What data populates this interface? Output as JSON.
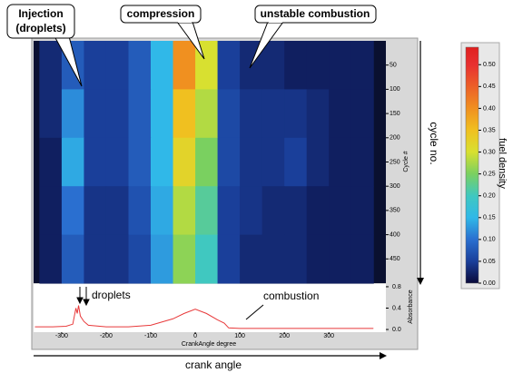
{
  "chart_data": [
    {
      "type": "heatmap",
      "x": [
        -325,
        -275,
        -225,
        -175,
        -125,
        -75,
        -25,
        25,
        75,
        125,
        175,
        225,
        275,
        325,
        375
      ],
      "y": [
        50,
        150,
        250,
        350,
        450
      ],
      "values": [
        [
          0.03,
          0.08,
          0.05,
          0.05,
          0.08,
          0.15,
          0.4,
          0.3,
          0.05,
          0.03,
          0.03,
          0.02,
          0.02,
          0.02,
          0.02
        ],
        [
          0.03,
          0.12,
          0.05,
          0.05,
          0.08,
          0.15,
          0.35,
          0.28,
          0.06,
          0.04,
          0.04,
          0.04,
          0.03,
          0.02,
          0.02
        ],
        [
          0.02,
          0.14,
          0.05,
          0.05,
          0.08,
          0.15,
          0.32,
          0.25,
          0.06,
          0.04,
          0.04,
          0.05,
          0.03,
          0.02,
          0.02
        ],
        [
          0.02,
          0.1,
          0.04,
          0.04,
          0.07,
          0.14,
          0.28,
          0.22,
          0.05,
          0.04,
          0.03,
          0.03,
          0.02,
          0.02,
          0.02
        ],
        [
          0.02,
          0.08,
          0.04,
          0.04,
          0.06,
          0.13,
          0.26,
          0.2,
          0.05,
          0.03,
          0.03,
          0.03,
          0.02,
          0.02,
          0.02
        ]
      ],
      "xlim": [
        -363,
        428
      ],
      "ylim": [
        0,
        500
      ],
      "yticks": [
        50,
        100,
        150,
        200,
        250,
        300,
        350,
        400,
        450
      ],
      "ylabel": "Cycle #",
      "axis_label": "cycle no.",
      "annotations": [
        "Injection",
        "(droplets)",
        "compression",
        "unstable combustion"
      ],
      "colorbar": {
        "label": "fuel density",
        "clim": [
          0,
          0.54
        ],
        "ticks": [
          {
            "value": 0,
            "label": "0.00"
          },
          {
            "value": 0.05,
            "label": "0.05"
          },
          {
            "value": 0.1,
            "label": "0.10"
          },
          {
            "value": 0.15,
            "label": "0.15"
          },
          {
            "value": 0.2,
            "label": "0.20"
          },
          {
            "value": 0.25,
            "label": "0.25"
          },
          {
            "value": 0.3,
            "label": "0.30"
          },
          {
            "value": 0.35,
            "label": "0.35"
          },
          {
            "value": 0.4,
            "label": "0.40"
          },
          {
            "value": 0.45,
            "label": "0.45"
          },
          {
            "value": 0.5,
            "label": "0.50"
          }
        ],
        "colorscale": [
          {
            "value": 0,
            "color": "#0a0a3a"
          },
          {
            "value": 0.05,
            "color": "#1a3f9a"
          },
          {
            "value": 0.1,
            "color": "#2a6fd0"
          },
          {
            "value": 0.15,
            "color": "#30b8e8"
          },
          {
            "value": 0.2,
            "color": "#40c8c0"
          },
          {
            "value": 0.25,
            "color": "#7ad060"
          },
          {
            "value": 0.3,
            "color": "#d8e030"
          },
          {
            "value": 0.35,
            "color": "#f0c020"
          },
          {
            "value": 0.4,
            "color": "#f09020"
          },
          {
            "value": 0.5,
            "color": "#e83030"
          },
          {
            "value": 0.54,
            "color": "#e02020"
          }
        ]
      }
    },
    {
      "type": "line",
      "x": [
        -360,
        -320,
        -290,
        -275,
        -268,
        -265,
        -262,
        -258,
        -250,
        -240,
        -200,
        -150,
        -100,
        -50,
        -25,
        0,
        25,
        50,
        65,
        75,
        100,
        150,
        200,
        250,
        300,
        350,
        400
      ],
      "values": [
        0.05,
        0.05,
        0.06,
        0.1,
        0.4,
        0.3,
        0.45,
        0.25,
        0.15,
        0.08,
        0.05,
        0.05,
        0.08,
        0.2,
        0.3,
        0.38,
        0.3,
        0.18,
        0.12,
        0.03,
        0.02,
        0.02,
        0.02,
        0.02,
        0.02,
        0.02,
        0.02
      ],
      "color": "#e8393a",
      "xlim": [
        -363,
        428
      ],
      "ylim": [
        -0.05,
        0.85
      ],
      "xticks": [
        -300,
        -200,
        -100,
        0,
        100,
        200,
        300
      ],
      "yticks": [
        {
          "value": 0,
          "label": "0.0"
        },
        {
          "value": 0.4,
          "label": "0.4"
        },
        {
          "value": 0.8,
          "label": "0.8"
        }
      ],
      "xlabel": "CrankAngle degree",
      "ylabel": "Absorbance",
      "axis_label": "crank angle",
      "annotations": [
        "droplets",
        "combustion"
      ]
    }
  ]
}
